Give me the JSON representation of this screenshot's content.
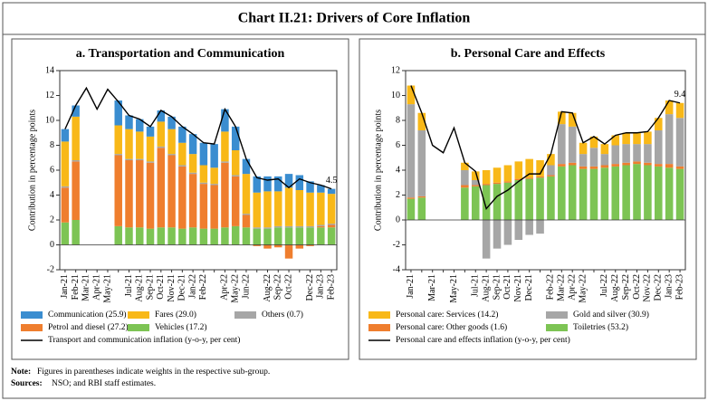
{
  "title": "Chart II.21: Drivers of Core Inflation",
  "chart_data": [
    {
      "type": "bar",
      "stacked": true,
      "title": "a. Transportation and Communication",
      "ylabel": "Contribution in percentage points",
      "categories": [
        "Jan-21",
        "Feb-21",
        "Mar-21",
        "Apr-21",
        "May-21",
        null,
        "Jul-21",
        "Aug-21",
        "Sep-21",
        "Oct-21",
        "Nov-21",
        "Dec-21",
        "Jan-22",
        "Feb-22",
        null,
        "Apr-22",
        "May-22",
        "Jun-22",
        null,
        "Aug-22",
        "Sep-22",
        "Oct-22",
        null,
        "Dec-22",
        "Jan-23",
        "Feb-23"
      ],
      "ylim": [
        -2,
        14
      ],
      "yticks": [
        -2,
        0,
        2,
        4,
        6,
        8,
        10,
        12,
        14
      ],
      "data_labels": "last",
      "series": [
        {
          "name": "Communication (25.9)",
          "color": "#3a8dd0",
          "values": [
            1.0,
            0.9,
            null,
            null,
            null,
            2.0,
            1.1,
            1.0,
            0.8,
            0.9,
            1.0,
            1.3,
            1.6,
            1.8,
            1.9,
            1.8,
            1.9,
            1.2,
            1.3,
            1.2,
            1.2,
            1.1,
            1.2,
            0.9,
            0.6,
            0.4
          ]
        },
        {
          "name": "Fares (29.0)",
          "color": "#f8b818",
          "values": [
            3.6,
            3.5,
            null,
            null,
            null,
            2.3,
            2.4,
            2.2,
            2.0,
            2.0,
            2.0,
            1.8,
            1.5,
            1.4,
            1.3,
            2.4,
            2.0,
            3.2,
            2.8,
            2.9,
            2.8,
            3.1,
            2.9,
            2.7,
            2.6,
            2.4
          ]
        },
        {
          "name": "Others (0.7)",
          "color": "#a6a6a6",
          "values": [
            0.1,
            0.1,
            null,
            null,
            null,
            0.1,
            0.1,
            0.1,
            0.1,
            0.1,
            0.1,
            0.1,
            0.1,
            0.1,
            0.1,
            0.1,
            0.1,
            0.1,
            0.1,
            0.1,
            0.1,
            0.1,
            0.1,
            0.1,
            0.1,
            0.1
          ]
        },
        {
          "name": "Petrol and diesel (27.2)",
          "color": "#ef7e2e",
          "values": [
            2.8,
            4.7,
            null,
            null,
            null,
            5.7,
            5.4,
            5.4,
            5.3,
            6.4,
            5.8,
            5.0,
            4.3,
            3.6,
            3.5,
            5.2,
            4.0,
            1.0,
            -0.1,
            -0.3,
            -0.2,
            -1.1,
            -0.3,
            -0.1,
            0.1,
            0.2
          ]
        },
        {
          "name": "Vehicles (17.2)",
          "color": "#7dc454",
          "values": [
            1.8,
            2.0,
            null,
            null,
            null,
            1.5,
            1.4,
            1.4,
            1.3,
            1.4,
            1.4,
            1.3,
            1.4,
            1.3,
            1.3,
            1.4,
            1.5,
            1.4,
            1.3,
            1.3,
            1.4,
            1.4,
            1.4,
            1.4,
            1.4,
            1.4
          ]
        },
        {
          "name": "Transport and communication inflation (y-o-y, per cent)",
          "type": "line",
          "color": "#000000",
          "values": [
            9.3,
            11.2,
            12.6,
            10.9,
            12.5,
            11.5,
            10.4,
            10.1,
            9.5,
            10.8,
            10.3,
            9.5,
            8.9,
            8.2,
            8.1,
            10.9,
            9.5,
            6.9,
            5.4,
            5.2,
            5.3,
            4.6,
            5.3,
            5.0,
            4.8,
            4.5
          ]
        }
      ]
    },
    {
      "type": "bar",
      "stacked": true,
      "title": "b. Personal Care and Effects",
      "ylabel": "Contribution in percentage points",
      "categories": [
        "Jan-21",
        null,
        "Mar-21",
        null,
        "May-21",
        null,
        "Jul-21",
        "Aug-21",
        "Sep-21",
        "Oct-21",
        "Nov-21",
        "Dec-21",
        null,
        "Feb-22",
        "Mar-22",
        "Apr-22",
        "May-22",
        null,
        "Jul-22",
        "Aug-22",
        "Sep-22",
        "Oct-22",
        "Nov-22",
        "Dec-22",
        "Jan-23",
        "Feb-23"
      ],
      "ylim": [
        -4,
        12
      ],
      "yticks": [
        -4,
        -2,
        0,
        2,
        4,
        6,
        8,
        10,
        12
      ],
      "data_labels": "last",
      "series": [
        {
          "name": "Personal care: Services (14.2)",
          "color": "#f8b818",
          "values": [
            1.5,
            1.4,
            null,
            null,
            null,
            0.6,
            0.7,
            1.1,
            1.2,
            1.3,
            1.4,
            1.5,
            1.3,
            0.9,
            1.0,
            1.1,
            0.9,
            0.9,
            0.8,
            0.8,
            0.9,
            0.9,
            1.0,
            1.0,
            1.1,
            1.2
          ]
        },
        {
          "name": "Gold and silver (30.9)",
          "color": "#a6a6a6",
          "values": [
            7.5,
            5.3,
            null,
            null,
            null,
            1.2,
            0.4,
            -3.1,
            -2.3,
            -2.0,
            -1.6,
            -1.2,
            -1.1,
            0.8,
            3.2,
            2.9,
            1.0,
            1.5,
            0.9,
            1.5,
            1.5,
            1.4,
            1.5,
            2.7,
            4.0,
            3.9
          ]
        },
        {
          "name": "Personal care: Other goods (1.6)",
          "color": "#ef7e2e",
          "values": [
            0.1,
            0.1,
            null,
            null,
            null,
            0.2,
            0.1,
            0.1,
            0.1,
            0.1,
            0.1,
            0.1,
            0.1,
            0.1,
            0.2,
            0.2,
            0.2,
            0.2,
            0.2,
            0.2,
            0.2,
            0.2,
            0.2,
            0.2,
            0.3,
            0.2
          ]
        },
        {
          "name": "Toiletries (53.2)",
          "color": "#7dc454",
          "values": [
            1.7,
            1.8,
            null,
            null,
            null,
            2.6,
            2.7,
            2.8,
            2.9,
            3.0,
            3.2,
            3.3,
            3.4,
            3.5,
            4.3,
            4.4,
            4.1,
            4.1,
            4.2,
            4.3,
            4.4,
            4.5,
            4.4,
            4.3,
            4.2,
            4.1
          ]
        },
        {
          "name": "Personal care and effects inflation (y-o-y, per cent)",
          "type": "line",
          "color": "#000000",
          "values": [
            10.8,
            8.6,
            6.0,
            5.4,
            7.4,
            4.6,
            3.9,
            0.9,
            1.9,
            2.4,
            3.1,
            3.7,
            3.7,
            5.3,
            8.7,
            8.6,
            6.2,
            6.7,
            6.1,
            6.8,
            7.0,
            7.0,
            7.1,
            8.2,
            9.6,
            9.4
          ]
        }
      ]
    }
  ],
  "footer": {
    "note_label": "Note:",
    "note": "Figures in parentheses indicate weights in the respective sub-group.",
    "sources_label": "Sources:",
    "sources": "NSO; and RBI staff estimates."
  }
}
